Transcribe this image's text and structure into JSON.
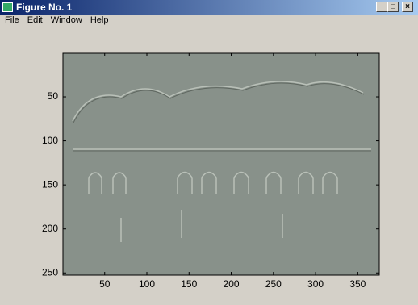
{
  "window": {
    "title": "Figure No. 1",
    "menu": [
      "File",
      "Edit",
      "Window",
      "Help"
    ]
  },
  "chart_data": {
    "type": "image",
    "xlim": [
      0.5,
      375.5
    ],
    "ylim": [
      0.5,
      252.5
    ],
    "y_reversed": true,
    "xticks": [
      50,
      100,
      150,
      200,
      250,
      300,
      350
    ],
    "yticks": [
      50,
      100,
      150,
      200,
      250
    ]
  }
}
